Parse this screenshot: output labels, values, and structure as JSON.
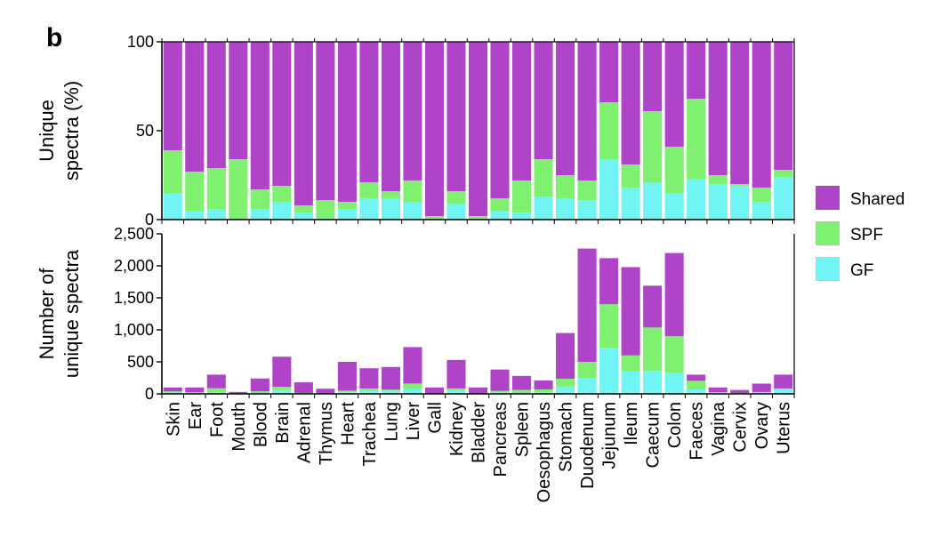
{
  "panel_label": "b",
  "colors": {
    "Shared": "#b044c8",
    "SPF": "#80f070",
    "GF": "#70f4f4"
  },
  "legend": [
    "Shared",
    "SPF",
    "GF"
  ],
  "chart_data": [
    {
      "type": "bar",
      "stacked": true,
      "ylabel": [
        "Unique",
        "spectra (%)"
      ],
      "ylim": [
        0,
        100
      ],
      "yticks": [
        0,
        50,
        100
      ],
      "ytick_labels": [
        "0",
        "50",
        "100"
      ],
      "categories": [
        "Skin",
        "Ear",
        "Foot",
        "Mouth",
        "Blood",
        "Brain",
        "Adrenal",
        "Thymus",
        "Heart",
        "Trachea",
        "Lung",
        "Liver",
        "Gall",
        "Kidney",
        "Bladder",
        "Pancreas",
        "Spleen",
        "Oesophagus",
        "Stomach",
        "Duodenum",
        "Jejunum",
        "Ileum",
        "Caecum",
        "Colon",
        "Faeces",
        "Vagina",
        "Cervix",
        "Ovary",
        "Uterus"
      ],
      "series": [
        {
          "name": "GF",
          "values": [
            15,
            5,
            6,
            0,
            6,
            10,
            4,
            1,
            6,
            12,
            12,
            10,
            0,
            9,
            0,
            5,
            4,
            13,
            12,
            11,
            34,
            18,
            21,
            15,
            23,
            20,
            19,
            10,
            24
          ]
        },
        {
          "name": "SPF",
          "values": [
            24,
            22,
            23,
            34,
            11,
            9,
            4,
            10,
            4,
            9,
            4,
            12,
            2,
            7,
            2,
            7,
            18,
            21,
            13,
            11,
            32,
            13,
            40,
            26,
            45,
            5,
            1,
            8,
            4
          ]
        },
        {
          "name": "Shared",
          "values": [
            61,
            73,
            71,
            66,
            83,
            81,
            92,
            89,
            90,
            79,
            84,
            78,
            98,
            84,
            98,
            88,
            78,
            66,
            75,
            78,
            34,
            69,
            39,
            59,
            32,
            75,
            80,
            82,
            72
          ]
        }
      ]
    },
    {
      "type": "bar",
      "stacked": true,
      "ylabel": [
        "Number of",
        "unique spectra"
      ],
      "ylim": [
        0,
        2500
      ],
      "yticks": [
        0,
        500,
        1000,
        1500,
        2000,
        2500
      ],
      "ytick_labels": [
        "0",
        "500",
        "1,000",
        "1,500",
        "2,000",
        "2,500"
      ],
      "categories": [
        "Skin",
        "Ear",
        "Foot",
        "Mouth",
        "Blood",
        "Brain",
        "Adrenal",
        "Thymus",
        "Heart",
        "Trachea",
        "Lung",
        "Liver",
        "Gall",
        "Kidney",
        "Bladder",
        "Pancreas",
        "Spleen",
        "Oesophagus",
        "Stomach",
        "Duodenum",
        "Jejunum",
        "Ileum",
        "Caecum",
        "Colon",
        "Faeces",
        "Vagina",
        "Cervix",
        "Ovary",
        "Uterus"
      ],
      "series": [
        {
          "name": "GF",
          "values": [
            15,
            5,
            18,
            0,
            14,
            57,
            7,
            1,
            30,
            48,
            50,
            73,
            0,
            47,
            0,
            19,
            11,
            26,
            114,
            250,
            720,
            350,
            357,
            330,
            69,
            20,
            11,
            16,
            72
          ]
        },
        {
          "name": "SPF",
          "values": [
            25,
            20,
            69,
            10,
            26,
            53,
            7,
            8,
            20,
            36,
            17,
            88,
            2,
            37,
            2,
            27,
            51,
            44,
            123,
            250,
            680,
            250,
            680,
            570,
            135,
            5,
            1,
            13,
            12
          ]
        },
        {
          "name": "Shared",
          "values": [
            60,
            75,
            213,
            20,
            200,
            470,
            166,
            71,
            450,
            316,
            353,
            569,
            98,
            446,
            98,
            334,
            218,
            140,
            713,
            1770,
            720,
            1380,
            653,
            1300,
            96,
            75,
            48,
            131,
            216
          ]
        }
      ]
    }
  ]
}
